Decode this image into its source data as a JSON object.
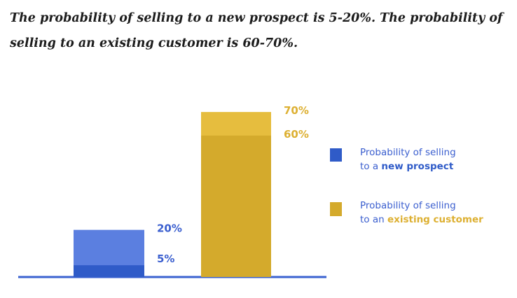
{
  "title": "The probability of selling to a new prospect is 5-20%. The probability of selling to an existing customer is 60-70%.",
  "colors": {
    "blue_dark": "#2f5bc8",
    "blue_light": "#5b7fe0",
    "gold_dark": "#d4aa2c",
    "gold_light": "#e6bd3e",
    "blue_text": "#3b5fcf",
    "gold_text": "#ddb032",
    "baseline": "#3a62d0"
  },
  "chart_data": {
    "type": "bar",
    "title": "The probability of selling to a new prospect is 5-20%. The probability of selling to an existing customer is 60-70%.",
    "ylim": [
      0,
      70
    ],
    "grid": false,
    "legend_position": "right",
    "series": [
      {
        "key": "new",
        "low": 5,
        "high": 20,
        "low_label": "5%",
        "high_label": "20%",
        "legend_prefix": "Probability of selling",
        "legend_pre": "to a ",
        "legend_em": "new prospect"
      },
      {
        "key": "existing",
        "low": 60,
        "high": 70,
        "low_label": "60%",
        "high_label": "70%",
        "legend_prefix": "Probability of selling",
        "legend_pre": "to an ",
        "legend_em": "existing customer"
      }
    ]
  }
}
